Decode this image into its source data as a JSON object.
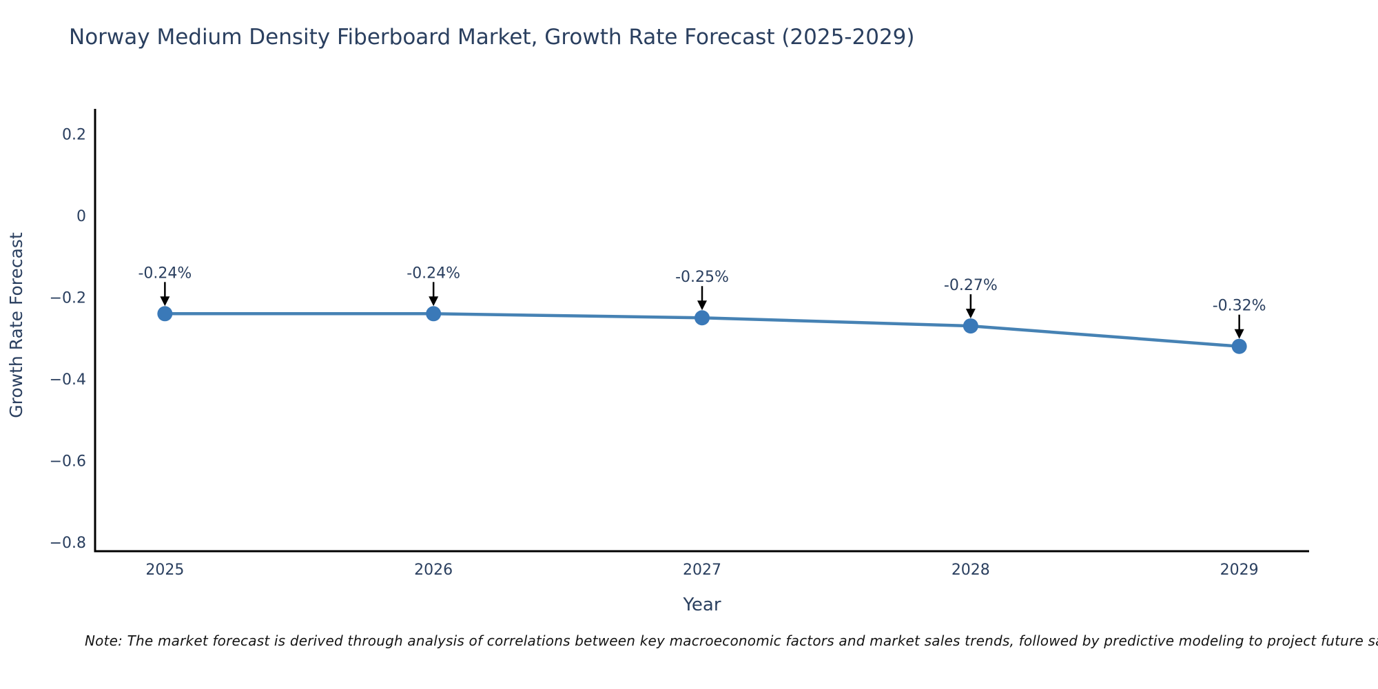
{
  "colors": {
    "title_text": "#2a3f5f",
    "axis_text": "#2a3f5f",
    "axis_line": "#000000",
    "note_text": "#141414",
    "background": "#ffffff"
  },
  "chart_data": {
    "type": "line",
    "title": "Norway Medium Density Fiberboard Market, Growth Rate Forecast (2025-2029)",
    "xlabel": "Year",
    "ylabel": "Growth Rate Forecast",
    "x": [
      2025,
      2026,
      2027,
      2028,
      2029
    ],
    "values": [
      -0.24,
      -0.24,
      -0.25,
      -0.27,
      -0.32
    ],
    "point_labels": [
      "-0.24%",
      "-0.24%",
      "-0.25%",
      "-0.27%",
      "-0.32%"
    ],
    "xtick_labels": [
      "2025",
      "2026",
      "2027",
      "2028",
      "2029"
    ],
    "yticks": [
      0.2,
      0,
      -0.2,
      -0.4,
      -0.6,
      -0.8
    ],
    "ytick_labels": [
      "0.2",
      "0",
      "−0.2",
      "−0.4",
      "−0.6",
      "−0.8"
    ],
    "xlim": [
      2024.74,
      2029.26
    ],
    "ylim": [
      -0.822,
      0.262
    ],
    "grid": false,
    "legend": "none",
    "line_color": "#4682b4",
    "marker_color": "#3a79b8",
    "annotation_arrow_color": "#000000",
    "note": "Note: The market forecast is derived through analysis of correlations between key macroeconomic factors and market sales trends, followed by predictive modeling to project future sa"
  }
}
